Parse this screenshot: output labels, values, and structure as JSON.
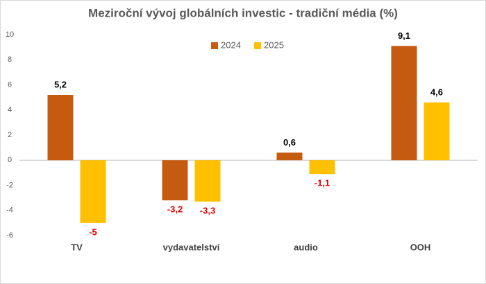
{
  "chart_data": {
    "type": "bar",
    "title": "Meziroční vývoj globálních investic - tradiční média (%)",
    "categories": [
      "TV",
      "vydavatelství",
      "audio",
      "OOH"
    ],
    "series": [
      {
        "name": "2024",
        "color": "#c55a11",
        "values": [
          5.2,
          -3.2,
          0.6,
          9.1
        ],
        "value_labels": [
          "5,2",
          "-3,2",
          "0,6",
          "9,1"
        ]
      },
      {
        "name": "2025",
        "color": "#ffc000",
        "values": [
          -5,
          -3.3,
          -1.1,
          4.6
        ],
        "value_labels": [
          "-5",
          "-3,3",
          "-1,1",
          "4,6"
        ]
      }
    ],
    "ylim": [
      -6,
      10
    ],
    "yticks": [
      -6,
      -4,
      -2,
      0,
      2,
      4,
      6,
      8,
      10
    ],
    "grid": false,
    "legend": "top"
  }
}
